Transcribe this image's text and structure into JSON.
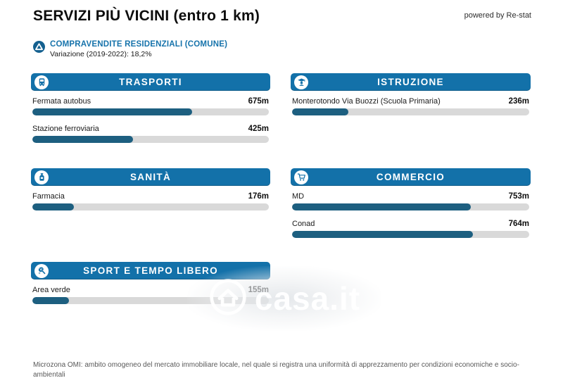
{
  "header": {
    "title": "SERVIZI PIÙ VICINI (entro 1 km)",
    "powered_by": "powered by Re-stat"
  },
  "subheader": {
    "icon": "trend-delta-icon",
    "title": "COMPRAVENDITE RESIDENZIALI (COMUNE)",
    "variation": "Variazione (2019-2022): 18,2%"
  },
  "colors": {
    "header_bar_blue": "#1371a9",
    "bar_fill_blue": "#1d5f80",
    "bar_track_gray": "#d9d9d9",
    "accent_text_blue": "#1673ab",
    "footer_gray": "#595959"
  },
  "cards": [
    {
      "title": "TRASPORTI",
      "icon": "bus-icon",
      "items": [
        {
          "label": "Fermata autobus",
          "distance_label": "675m",
          "distance_m": 675
        },
        {
          "label": "Stazione ferroviaria",
          "distance_label": "425m",
          "distance_m": 425
        }
      ]
    },
    {
      "title": "ISTRUZIONE",
      "icon": "graduate-icon",
      "items": [
        {
          "label": "Monterotondo Via Buozzi (Scuola Primaria)",
          "distance_label": "236m",
          "distance_m": 236
        }
      ]
    },
    {
      "title": "SANITÀ",
      "icon": "medicine-bottle-icon",
      "items": [
        {
          "label": "Farmacia",
          "distance_label": "176m",
          "distance_m": 176
        }
      ]
    },
    {
      "title": "COMMERCIO",
      "icon": "shopping-cart-icon",
      "items": [
        {
          "label": "MD",
          "distance_label": "753m",
          "distance_m": 753
        },
        {
          "label": "Conad",
          "distance_label": "764m",
          "distance_m": 764
        }
      ]
    },
    {
      "title": "SPORT E TEMPO LIBERO",
      "icon": "racket-icon",
      "items": [
        {
          "label": "Area verde",
          "distance_label": "155m",
          "distance_m": 155
        }
      ]
    }
  ],
  "watermark": {
    "text": "casa.it",
    "icon": "house-circle-icon"
  },
  "footer": {
    "text": "Microzona OMI: ambito omogeneo del mercato immobiliare locale, nel quale si registra una uniformità di apprezzamento per condizioni economiche e socio-ambientali"
  },
  "chart_data": {
    "type": "bar",
    "orientation": "horizontal",
    "unit": "m",
    "xlim": [
      0,
      1000
    ],
    "title": "SERVIZI PIÙ VICINI (entro 1 km)",
    "grid": false,
    "legend": false,
    "series": [
      {
        "group": "TRASPORTI",
        "categories": [
          "Fermata autobus",
          "Stazione ferroviaria"
        ],
        "values": [
          675,
          425
        ]
      },
      {
        "group": "ISTRUZIONE",
        "categories": [
          "Monterotondo Via Buozzi (Scuola Primaria)"
        ],
        "values": [
          236
        ]
      },
      {
        "group": "SANITÀ",
        "categories": [
          "Farmacia"
        ],
        "values": [
          176
        ]
      },
      {
        "group": "COMMERCIO",
        "categories": [
          "MD",
          "Conad"
        ],
        "values": [
          753,
          764
        ]
      },
      {
        "group": "SPORT E TEMPO LIBERO",
        "categories": [
          "Area verde"
        ],
        "values": [
          155
        ]
      }
    ]
  }
}
